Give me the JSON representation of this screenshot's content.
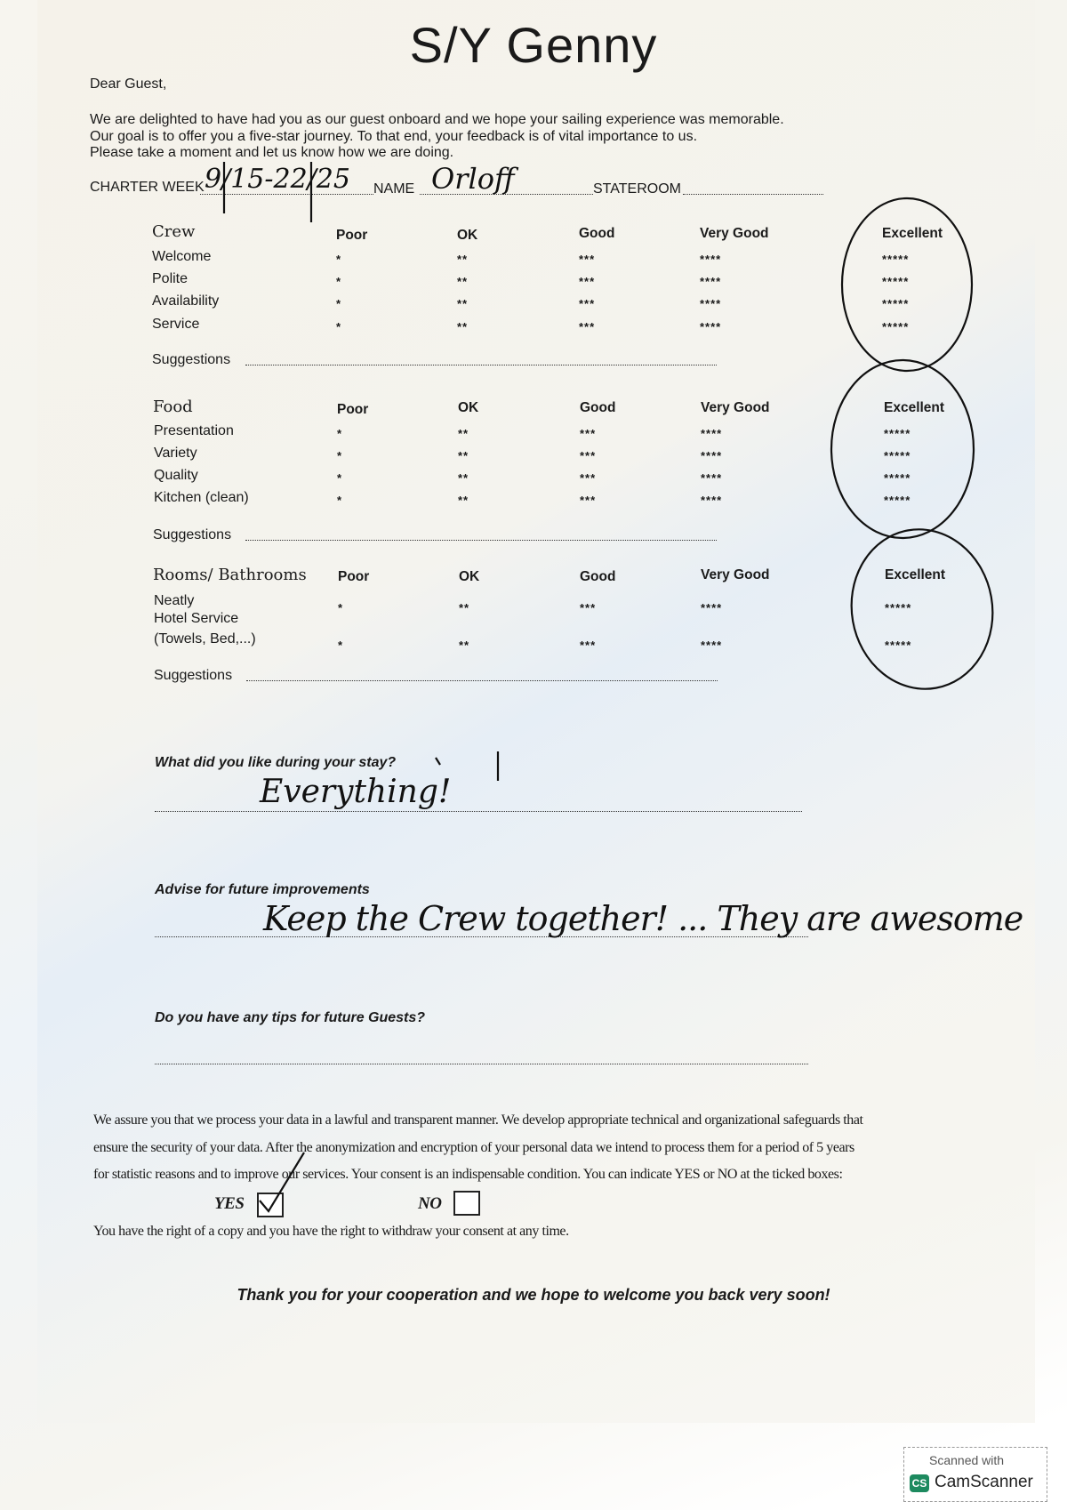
{
  "header": {
    "title": "S/Y Genny"
  },
  "intro": {
    "greeting": "Dear Guest,",
    "lines": [
      "We are delighted to have had you as our guest onboard and we hope your sailing experience was memorable.",
      "Our goal is to offer you a five-star journey. To that end, your feedback is of vital importance to us.",
      "Please take a moment and let us know how we are doing."
    ]
  },
  "fields": {
    "charter_week_label": "CHARTER WEEK",
    "charter_week_value": "9/15-22/25",
    "name_label": "NAME",
    "name_value": "Orloff",
    "stateroom_label": "STATEROOM",
    "stateroom_value": ""
  },
  "columns": [
    "Poor",
    "OK",
    "Good",
    "Very Good",
    "Excellent"
  ],
  "stars": [
    "*",
    "**",
    "***",
    "****",
    "*****"
  ],
  "sections": [
    {
      "title": "Crew",
      "items": [
        "Welcome",
        "Polite",
        "Availability",
        "Service"
      ],
      "rating": "Excellent",
      "suggestions_label": "Suggestions"
    },
    {
      "title": "Food",
      "items": [
        "Presentation",
        "Variety",
        "Quality",
        "Kitchen (clean)"
      ],
      "rating": "Excellent",
      "suggestions_label": "Suggestions"
    },
    {
      "title": "Rooms/ Bathrooms",
      "items": [
        "Neatly",
        "Hotel Service",
        "(Towels, Bed,...)"
      ],
      "rating": "Excellent",
      "suggestions_label": "Suggestions"
    }
  ],
  "questions": [
    {
      "label": "What did you like during your stay?",
      "answer": "Everything!"
    },
    {
      "label": "Advise for future improvements",
      "answer": "Keep the Crew together! ... They are awesome"
    },
    {
      "label": "Do you have any tips for future Guests?",
      "answer": ""
    }
  ],
  "privacy": {
    "lines": [
      "We assure you that we process your data in a lawful and transparent manner. We develop appropriate technical and organizational safeguards that",
      "ensure the security of your data. After the anonymization and encryption of your personal data we intend to process them for a period of 5 years",
      "for statistic reasons and to improve our services. Your consent is an indispensable condition. You can indicate YES or NO at the ticked boxes:"
    ],
    "yes_label": "YES",
    "no_label": "NO",
    "consent": "YES",
    "rights": "You have the right of a copy and you have the right to withdraw your consent at any time."
  },
  "closing": "Thank you for your cooperation and we hope to welcome you back very soon!",
  "watermark": {
    "line1": "Scanned with",
    "brand": "CamScanner",
    "logo": "CS"
  }
}
